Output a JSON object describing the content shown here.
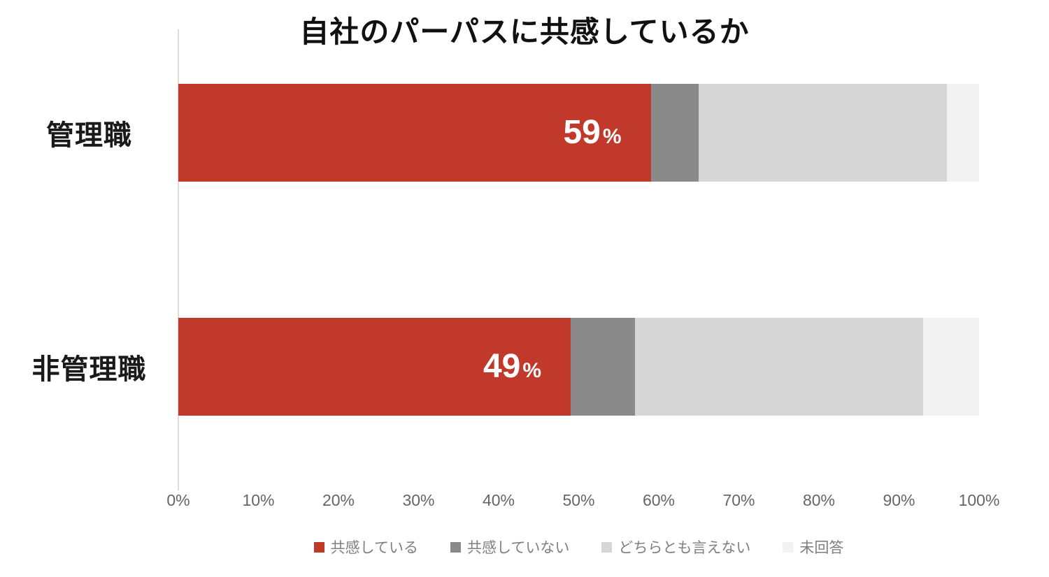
{
  "title": "自社のパーパスに共感しているか",
  "chart_data": {
    "type": "bar",
    "orientation": "horizontal",
    "stacked": true,
    "title": "自社のパーパスに共感しているか",
    "categories": [
      "管理職",
      "非管理職"
    ],
    "series": [
      {
        "name": "共感している",
        "color": "#c0392b",
        "values": [
          59,
          49
        ]
      },
      {
        "name": "共感していない",
        "color": "#8a8a8a",
        "values": [
          6,
          8
        ]
      },
      {
        "name": "どちらとも言えない",
        "color": "#d6d6d6",
        "values": [
          31,
          36
        ]
      },
      {
        "name": "未回答",
        "color": "#f2f2f2",
        "values": [
          4,
          7
        ]
      }
    ],
    "data_labels": {
      "series": "共感している",
      "values": [
        "59",
        "49"
      ],
      "suffix": "%"
    },
    "x_ticks": [
      "0%",
      "10%",
      "20%",
      "30%",
      "40%",
      "50%",
      "60%",
      "70%",
      "80%",
      "90%",
      "100%"
    ],
    "xlim": [
      0,
      100
    ],
    "grid": false,
    "legend_position": "bottom"
  }
}
